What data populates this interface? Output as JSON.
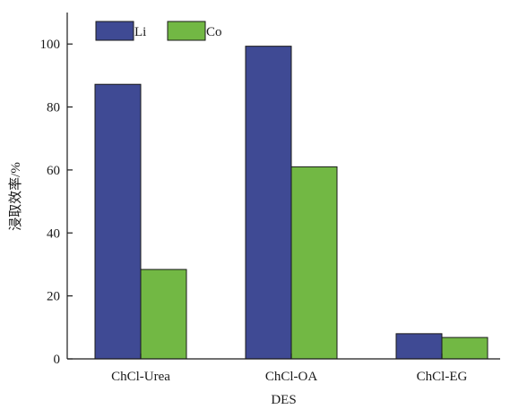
{
  "chart_data": {
    "type": "bar",
    "categories": [
      "ChCl-Urea",
      "ChCl-OA",
      "ChCl-EG"
    ],
    "series": [
      {
        "name": "Li",
        "values": [
          87.2,
          99.3,
          8.0
        ],
        "color": "#3f4a94"
      },
      {
        "name": "Co",
        "values": [
          28.4,
          61.0,
          6.8
        ],
        "color": "#72b844"
      }
    ],
    "title": "",
    "xlabel": "DES",
    "ylabel": "浸取效率/%",
    "ylim": [
      0,
      110
    ],
    "yticks": [
      0,
      20,
      40,
      60,
      80,
      100
    ],
    "grid": false,
    "legend_position": "top-left"
  }
}
